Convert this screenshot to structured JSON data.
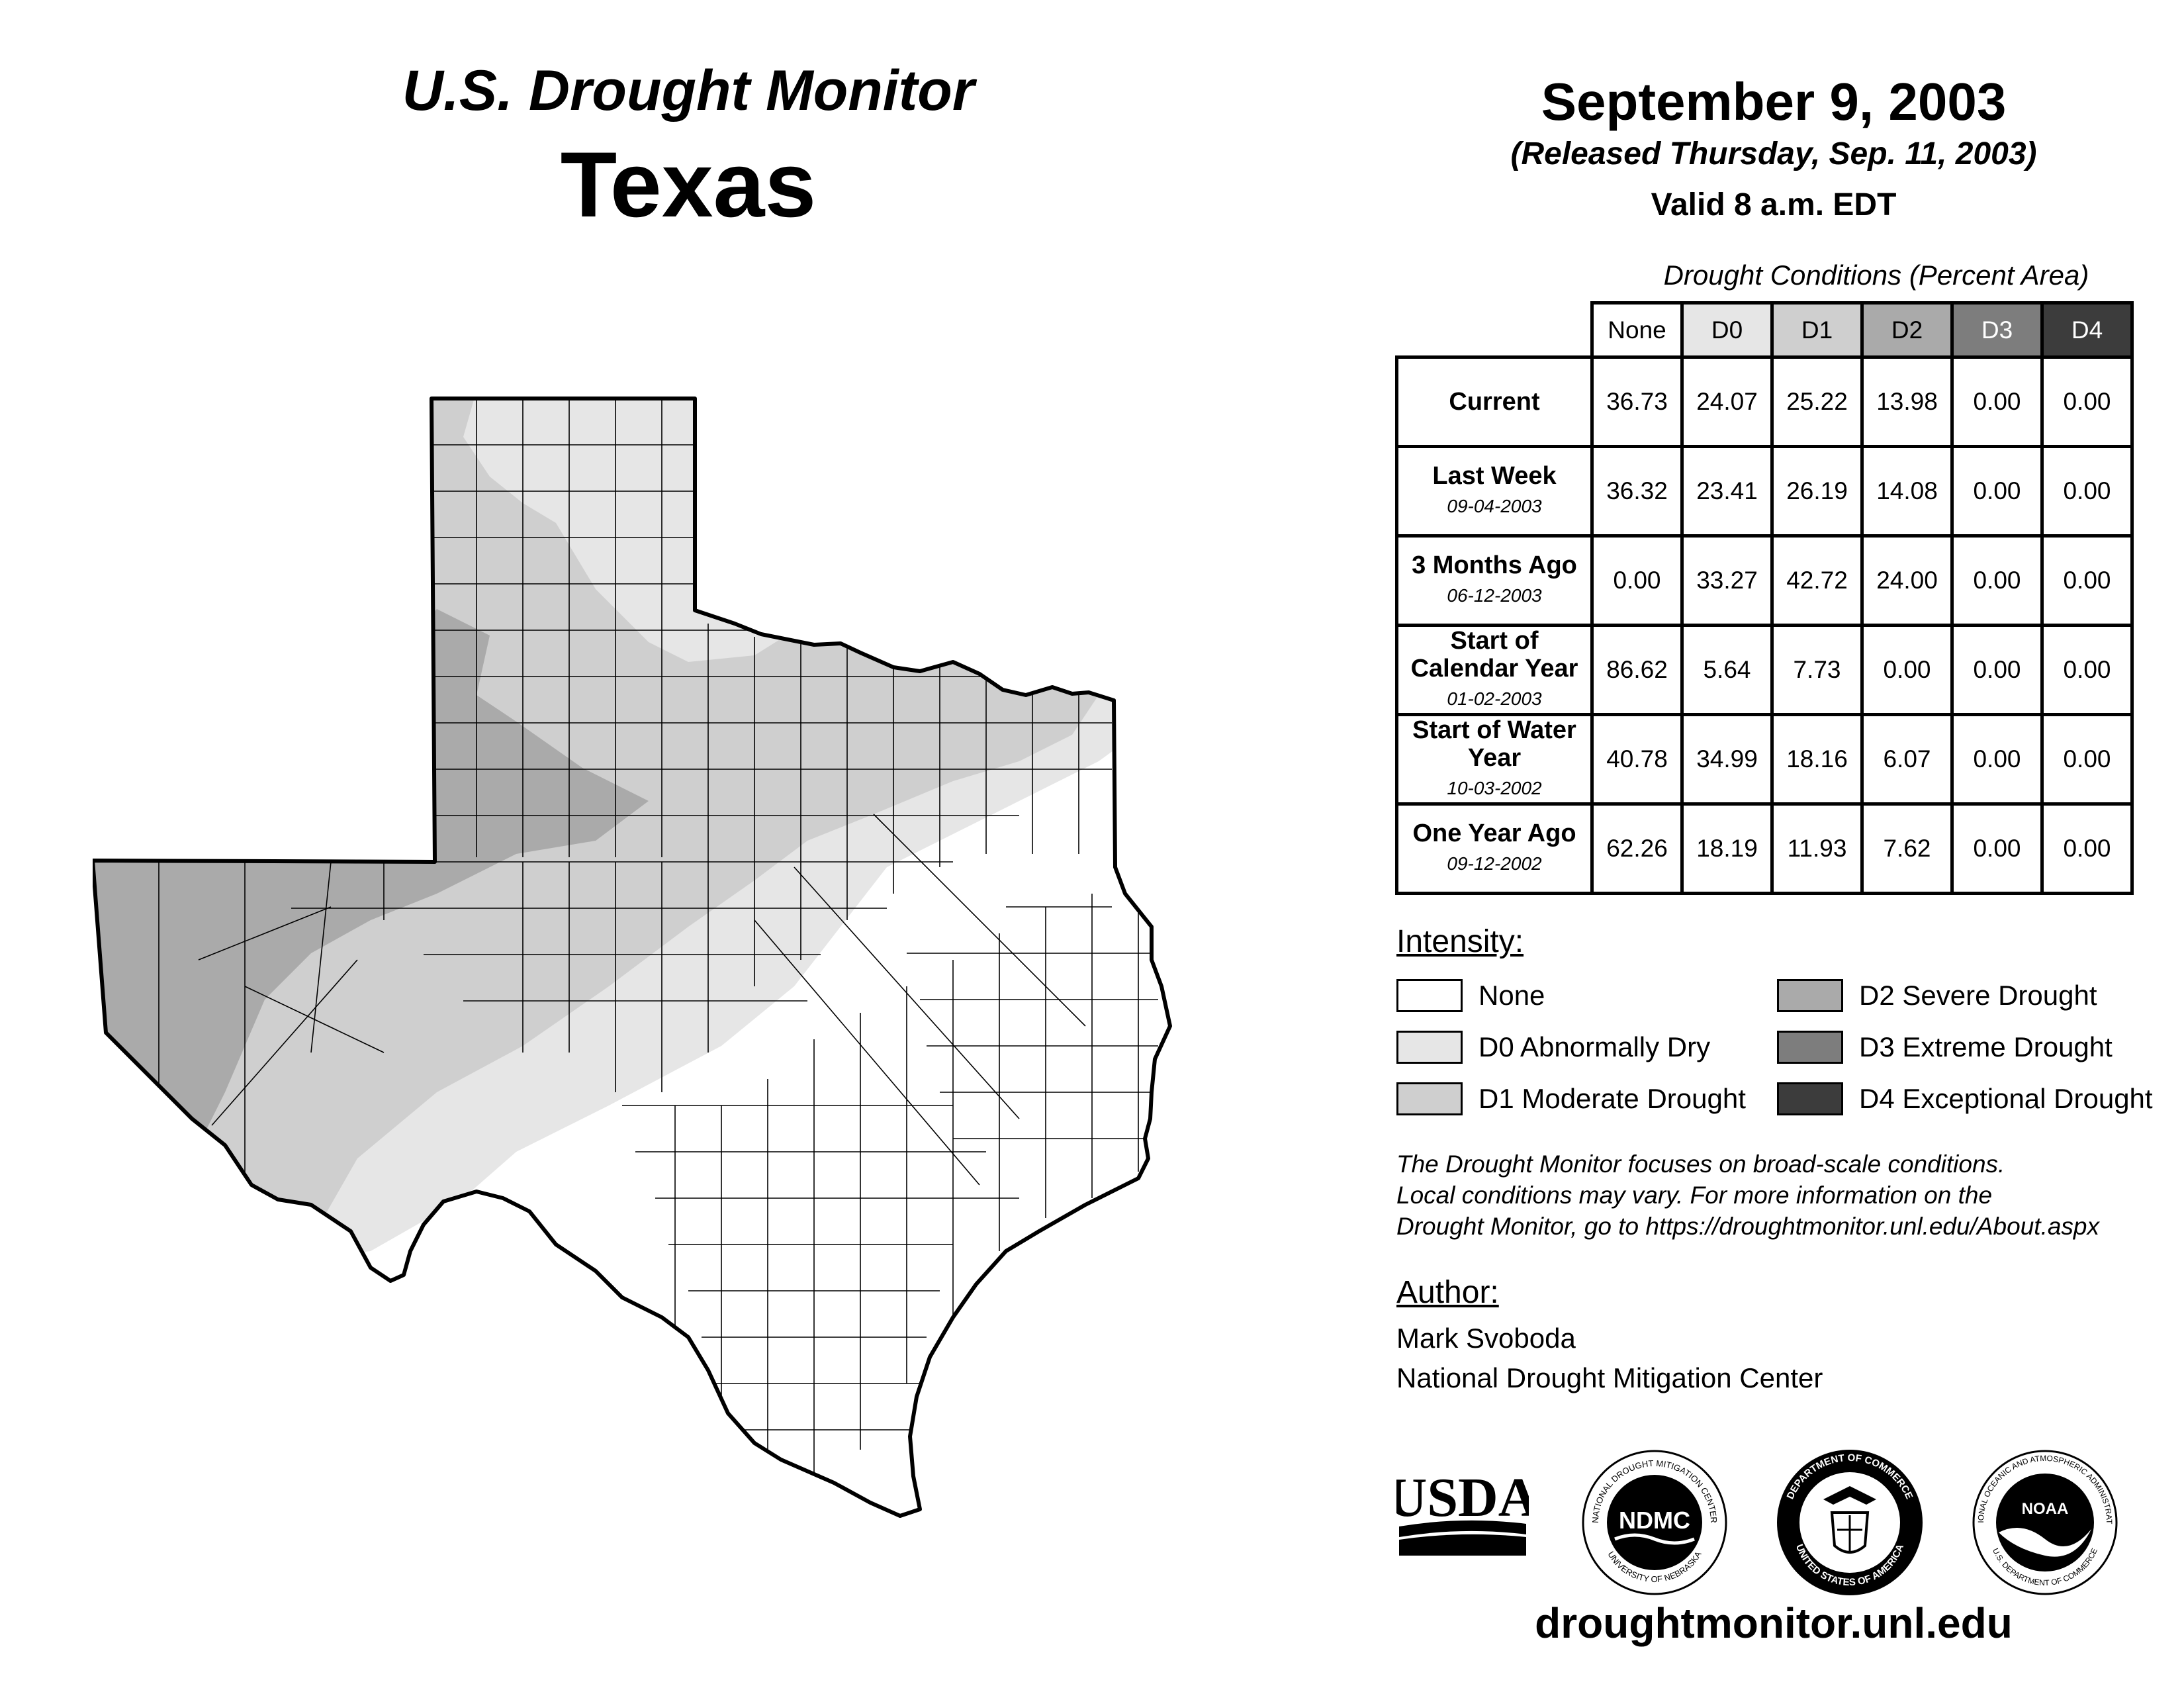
{
  "header": {
    "subtitle": "U.S. Drought Monitor",
    "region": "Texas",
    "date": "September 9, 2003",
    "released": "(Released Thursday, Sep. 11, 2003)",
    "valid": "Valid 8 a.m. EDT"
  },
  "table": {
    "caption": "Drought Conditions (Percent Area)",
    "columns": [
      "None",
      "D0",
      "D1",
      "D2",
      "D3",
      "D4"
    ],
    "rows": [
      {
        "label": "Current",
        "date": "",
        "values": [
          "36.73",
          "24.07",
          "25.22",
          "13.98",
          "0.00",
          "0.00"
        ]
      },
      {
        "label": "Last Week",
        "date": "09-04-2003",
        "values": [
          "36.32",
          "23.41",
          "26.19",
          "14.08",
          "0.00",
          "0.00"
        ]
      },
      {
        "label": "3 Months Ago",
        "date": "06-12-2003",
        "values": [
          "0.00",
          "33.27",
          "42.72",
          "24.00",
          "0.00",
          "0.00"
        ]
      },
      {
        "label": "Start of Calendar Year",
        "date": "01-02-2003",
        "values": [
          "86.62",
          "5.64",
          "7.73",
          "0.00",
          "0.00",
          "0.00"
        ]
      },
      {
        "label": "Start of Water Year",
        "date": "10-03-2002",
        "values": [
          "40.78",
          "34.99",
          "18.16",
          "6.07",
          "0.00",
          "0.00"
        ]
      },
      {
        "label": "One Year Ago",
        "date": "09-12-2002",
        "values": [
          "62.26",
          "18.19",
          "11.93",
          "7.62",
          "0.00",
          "0.00"
        ]
      }
    ]
  },
  "legend": {
    "title": "Intensity:",
    "items": [
      {
        "label": "None",
        "color": "#ffffff"
      },
      {
        "label": "D0 Abnormally Dry",
        "color": "#e6e6e6"
      },
      {
        "label": "D1 Moderate Drought",
        "color": "#cfcfcf"
      },
      {
        "label": "D2 Severe Drought",
        "color": "#aaaaaa"
      },
      {
        "label": "D3 Extreme Drought",
        "color": "#7d7d7d"
      },
      {
        "label": "D4 Exceptional Drought",
        "color": "#3c3c3c"
      }
    ]
  },
  "note": {
    "line1": "The Drought Monitor focuses on broad-scale conditions.",
    "line2": "Local conditions may vary. For more information on the",
    "line3": "Drought Monitor, go to https://droughtmonitor.unl.edu/About.aspx"
  },
  "author": {
    "title": "Author:",
    "name": "Mark Svoboda",
    "org": "National Drought Mitigation Center"
  },
  "logos": {
    "usda": "USDA",
    "ndmc": "NDMC",
    "ndmc_ring": "NATIONAL DROUGHT MITIGATION CENTER",
    "ndmc_ring_bottom": "UNIVERSITY OF NEBRASKA",
    "doc_ring": "DEPARTMENT OF COMMERCE",
    "doc_ring_bottom": "UNITED STATES OF AMERICA",
    "noaa": "NOAA",
    "noaa_ring": "NATIONAL OCEANIC AND ATMOSPHERIC ADMINISTRATION",
    "noaa_ring_bottom": "U.S. DEPARTMENT OF COMMERCE"
  },
  "footer": {
    "url": "droughtmonitor.unl.edu"
  }
}
